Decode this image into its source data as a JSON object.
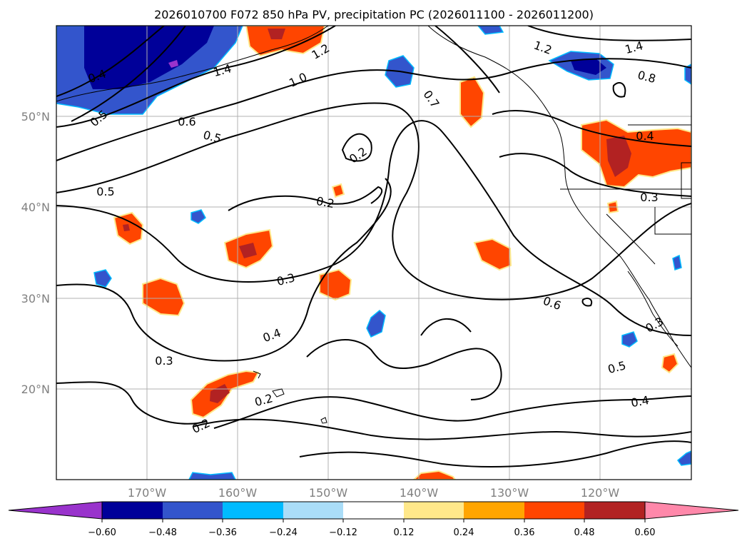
{
  "title": "2026010700 F072 850 hPa PV, precipitation PC (2026011100 - 2026011200)",
  "map": {
    "lon_labels": [
      "170°W",
      "160°W",
      "150°W",
      "140°W",
      "130°W",
      "120°W"
    ],
    "lat_labels": [
      "50°N",
      "40°N",
      "30°N",
      "20°N"
    ],
    "contour_labels": [
      "0.4",
      "0.5",
      "0.6",
      "0.5",
      "1.4",
      "1.2",
      "1.0",
      "0.7",
      "1.2",
      "1.4",
      "0.8",
      "0.4",
      "0.5",
      "0.2",
      "0.2",
      "0.3",
      "0.3",
      "0.6",
      "0.4",
      "0.3",
      "0.2",
      "0.2",
      "0.5",
      "0.4",
      "0.3"
    ]
  },
  "colorbar": {
    "labels": [
      "−0.60",
      "−0.48",
      "−0.36",
      "−0.24",
      "−0.12",
      "0.12",
      "0.24",
      "0.36",
      "0.48",
      "0.60"
    ],
    "colors": [
      "#9933cc",
      "#000099",
      "#3355cc",
      "#00bbff",
      "#aaddf8",
      "#ffffff",
      "#ffe88a",
      "#ffa500",
      "#ff4500",
      "#b22222",
      "#ff88aa"
    ]
  },
  "colors": {
    "coast": "#000000",
    "grid": "#b0b0b0",
    "tick_text": "#808080"
  }
}
